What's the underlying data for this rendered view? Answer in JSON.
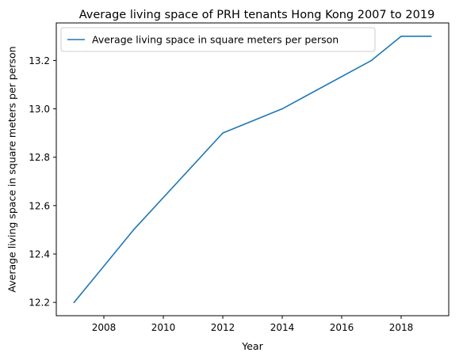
{
  "chart_data": {
    "type": "line",
    "title": "Average living space of PRH tenants Hong Kong 2007 to 2019",
    "xlabel": "Year",
    "ylabel": "Average living space in square meters per person",
    "x": [
      2007,
      2009,
      2012,
      2014,
      2017,
      2018,
      2019
    ],
    "series": [
      {
        "name": "Average living space in square meters per person",
        "values": [
          12.2,
          12.5,
          12.9,
          13.0,
          13.2,
          13.3,
          13.3
        ],
        "color": "#1f77b4"
      }
    ],
    "xlim": [
      2006.4,
      2019.6
    ],
    "ylim": [
      12.145,
      13.355
    ],
    "x_ticks": [
      2008,
      2010,
      2012,
      2014,
      2016,
      2018
    ],
    "y_ticks": [
      12.2,
      12.4,
      12.6,
      12.8,
      13.0,
      13.2
    ],
    "x_tick_labels": [
      "2008",
      "2010",
      "2012",
      "2014",
      "2016",
      "2018"
    ],
    "y_tick_labels": [
      "12.2",
      "12.4",
      "12.6",
      "12.8",
      "13.0",
      "13.2"
    ],
    "grid": false,
    "legend_position": "top-left"
  }
}
